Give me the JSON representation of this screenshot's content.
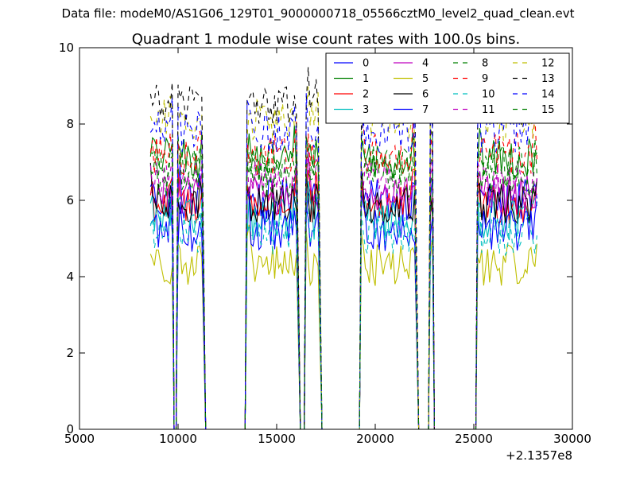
{
  "figure": {
    "suptitle": "Data file: modeM0/AS1G06_129T01_9000000718_05566cztM0_level2_quad_clean.evt"
  },
  "chart_data": {
    "type": "line",
    "title": "Quadrant 1 module wise count rates with 100.0s bins.",
    "xlabel": "",
    "ylabel": "",
    "x_offset_label": "+2.1357e8",
    "xlim": [
      5000,
      30000
    ],
    "ylim": [
      0,
      10
    ],
    "x_ticks": [
      5000,
      10000,
      15000,
      20000,
      25000,
      30000
    ],
    "y_ticks": [
      0,
      2,
      4,
      6,
      8,
      10
    ],
    "grid": false,
    "legend_position": "top-right",
    "legend_columns": 4,
    "segments": [
      {
        "x_start": 8600,
        "x_end": 9700
      },
      {
        "x_start": 10000,
        "x_end": 11200
      },
      {
        "x_start": 13500,
        "x_end": 16000
      },
      {
        "x_start": 16500,
        "x_end": 17100
      },
      {
        "x_start": 19300,
        "x_end": 22000
      },
      {
        "x_start": 22800,
        "x_end": 22900
      },
      {
        "x_start": 25200,
        "x_end": 28200
      }
    ],
    "zero_points": [
      9800,
      9900,
      11400,
      12000,
      13000,
      13400,
      16200,
      16400,
      17300,
      18000,
      19200,
      22200,
      22400,
      22700,
      23000,
      24000,
      25100
    ],
    "series": [
      {
        "name": "0",
        "color": "#0000ff",
        "dash": "solid",
        "level": 6.0
      },
      {
        "name": "1",
        "color": "#008000",
        "dash": "solid",
        "level": 7.1
      },
      {
        "name": "2",
        "color": "#ff0000",
        "dash": "solid",
        "level": 5.9
      },
      {
        "name": "3",
        "color": "#00bfbf",
        "dash": "solid",
        "level": 5.5
      },
      {
        "name": "4",
        "color": "#bf00bf",
        "dash": "solid",
        "level": 6.1
      },
      {
        "name": "5",
        "color": "#bfbf00",
        "dash": "solid",
        "level": 4.3
      },
      {
        "name": "6",
        "color": "#000000",
        "dash": "solid",
        "level": 5.9
      },
      {
        "name": "7",
        "color": "#0000ff",
        "dash": "solid",
        "level": 5.2
      },
      {
        "name": "8",
        "color": "#008000",
        "dash": "dashed",
        "level": 6.9
      },
      {
        "name": "9",
        "color": "#ff0000",
        "dash": "dashed",
        "level": 7.2
      },
      {
        "name": "10",
        "color": "#00bfbf",
        "dash": "dashed",
        "level": 5.1
      },
      {
        "name": "11",
        "color": "#bf00bf",
        "dash": "dashed",
        "level": 6.5
      },
      {
        "name": "12",
        "color": "#bfbf00",
        "dash": "dashed",
        "level": 8.1
      },
      {
        "name": "13",
        "color": "#000000",
        "dash": "dashed",
        "level": 8.5
      },
      {
        "name": "14",
        "color": "#0000ff",
        "dash": "dashed",
        "level": 7.8
      },
      {
        "name": "15",
        "color": "#008000",
        "dash": "dashed",
        "level": 6.6
      }
    ]
  }
}
